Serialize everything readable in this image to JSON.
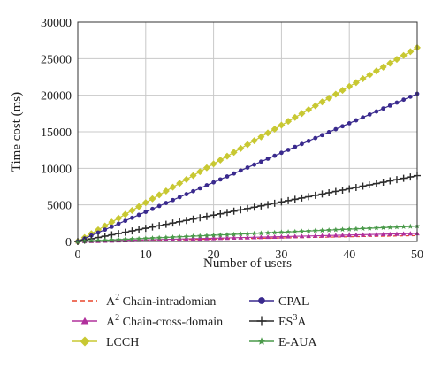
{
  "chart_data": {
    "type": "line",
    "xlabel": "Number of users",
    "ylabel": "Time cost (ms)",
    "xlim": [
      0,
      50
    ],
    "ylim": [
      0,
      30000
    ],
    "xticks": [
      0,
      10,
      20,
      30,
      40,
      50
    ],
    "yticks": [
      0,
      5000,
      10000,
      15000,
      20000,
      25000,
      30000
    ],
    "grid": true,
    "legend_position": "bottom",
    "x": [
      0,
      50
    ],
    "series": [
      {
        "name_prefix": "A",
        "name_sup": "2",
        "name_rest": " Chain-intradomian",
        "marker": "none",
        "dash": true,
        "color": "#e8452c",
        "values": [
          0,
          800
        ]
      },
      {
        "name_prefix": "A",
        "name_sup": "2",
        "name_rest": " Chain-cross-domain",
        "marker": "triangle",
        "color": "#b0309c",
        "values": [
          0,
          1100
        ]
      },
      {
        "name": "LCCH",
        "marker": "diamond",
        "color": "#c8c832",
        "values": [
          0,
          26500
        ]
      },
      {
        "name": "CPAL",
        "marker": "circle",
        "color": "#3a2a8e",
        "values": [
          0,
          20200
        ]
      },
      {
        "name_prefix": "ES",
        "name_sup": "3",
        "name_rest": "A",
        "marker": "plus",
        "color": "#2b2b2b",
        "values": [
          0,
          9000
        ]
      },
      {
        "name": "E-AUA",
        "marker": "star",
        "color": "#4a9a4a",
        "values": [
          0,
          2100
        ]
      }
    ]
  }
}
